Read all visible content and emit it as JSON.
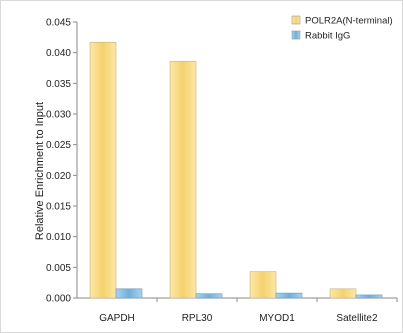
{
  "chart_data": {
    "type": "bar",
    "title": "",
    "xlabel": "",
    "ylabel": "Relative Enrichment to Input",
    "ylim": [
      0,
      0.045
    ],
    "yticks": [
      "0.000",
      "0.005",
      "0.010",
      "0.015",
      "0.020",
      "0.025",
      "0.030",
      "0.035",
      "0.040",
      "0.045"
    ],
    "categories": [
      "GAPDH",
      "RPL30",
      "MYOD1",
      "Satellite2"
    ],
    "series": [
      {
        "name": "POLR2A(N-terminal)",
        "values": [
          0.0417,
          0.0386,
          0.0043,
          0.0015
        ],
        "color": "#f7dc8a"
      },
      {
        "name": "Rabbit IgG",
        "values": [
          0.0015,
          0.0007,
          0.0008,
          0.0005
        ],
        "color": "#8ec3e3"
      }
    ],
    "legend_position": "top-right",
    "grid": false
  }
}
